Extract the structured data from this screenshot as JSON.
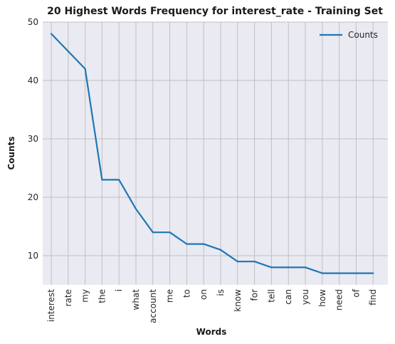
{
  "chart_data": {
    "type": "line",
    "title": "20 Highest Words Frequency for interest_rate - Training Set",
    "xlabel": "Words",
    "ylabel": "Counts",
    "categories": [
      "interest",
      "rate",
      "my",
      "the",
      "i",
      "what",
      "account",
      "me",
      "to",
      "on",
      "is",
      "know",
      "for",
      "tell",
      "can",
      "you",
      "how",
      "need",
      "of",
      "find"
    ],
    "series": [
      {
        "name": "Counts",
        "values": [
          48,
          45,
          42,
          23,
          23,
          18,
          14,
          14,
          12,
          12,
          11,
          9,
          9,
          8,
          8,
          8,
          7,
          7,
          7,
          7
        ]
      }
    ],
    "ylim": [
      5,
      50
    ],
    "yticks": [
      10,
      20,
      30,
      40,
      50
    ],
    "grid": true,
    "legend": "top-right",
    "colors": {
      "line": "#1f77b4",
      "plot_bg": "#eaeaf2",
      "grid": "#c0c0c0"
    }
  }
}
